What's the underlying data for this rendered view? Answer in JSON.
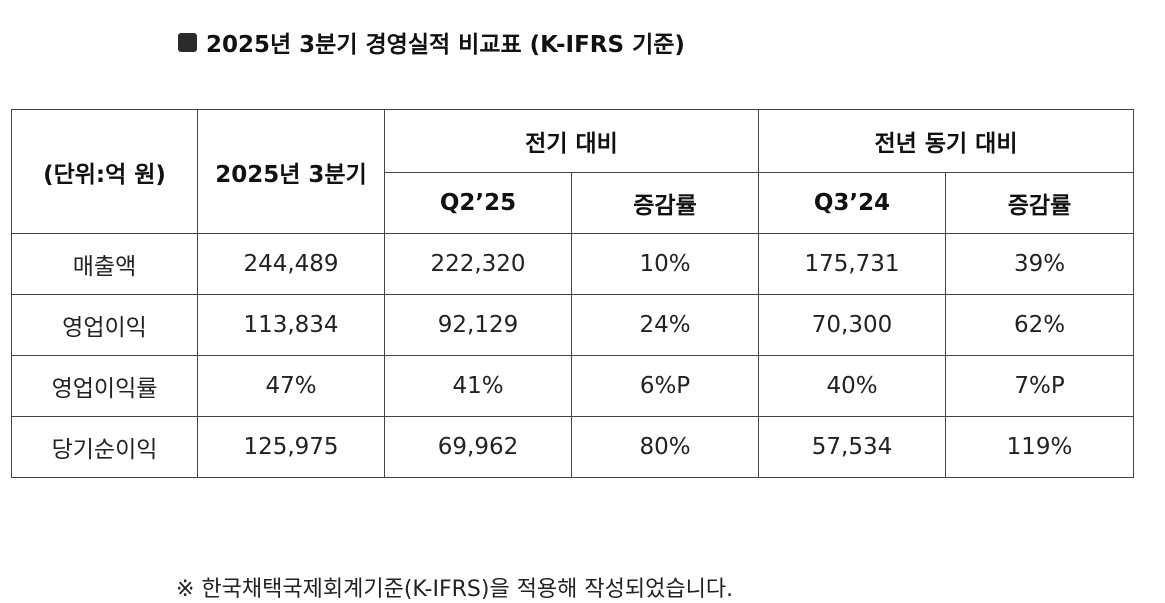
{
  "title": "2025년 3분기 경영실적 비교표 (K-IFRS 기준)",
  "table": {
    "unit_label": "(단위:억 원)",
    "current_label": "2025년 3분기",
    "group_prev_quarter": "전기 대비",
    "group_prev_year": "전년 동기 대비",
    "sub_q2": "Q2’25",
    "sub_rate1": "증감률",
    "sub_q3": "Q3’24",
    "sub_rate2": "증감률",
    "rows": [
      {
        "item": "매출액",
        "current": "244,489",
        "q2_25": "222,320",
        "qoq": "10%",
        "q3_24": "175,731",
        "yoy": "39%"
      },
      {
        "item": "영업이익",
        "current": "113,834",
        "q2_25": "92,129",
        "qoq": "24%",
        "q3_24": "70,300",
        "yoy": "62%"
      },
      {
        "item": "영업이익률",
        "current": "47%",
        "q2_25": "41%",
        "qoq": "6%P",
        "q3_24": "40%",
        "yoy": "7%P"
      },
      {
        "item": "당기순이익",
        "current": "125,975",
        "q2_25": "69,962",
        "qoq": "80%",
        "q3_24": "57,534",
        "yoy": "119%"
      }
    ]
  },
  "footnote": "※ 한국채택국제회계기준(K-IFRS)을 적용해 작성되었습니다."
}
